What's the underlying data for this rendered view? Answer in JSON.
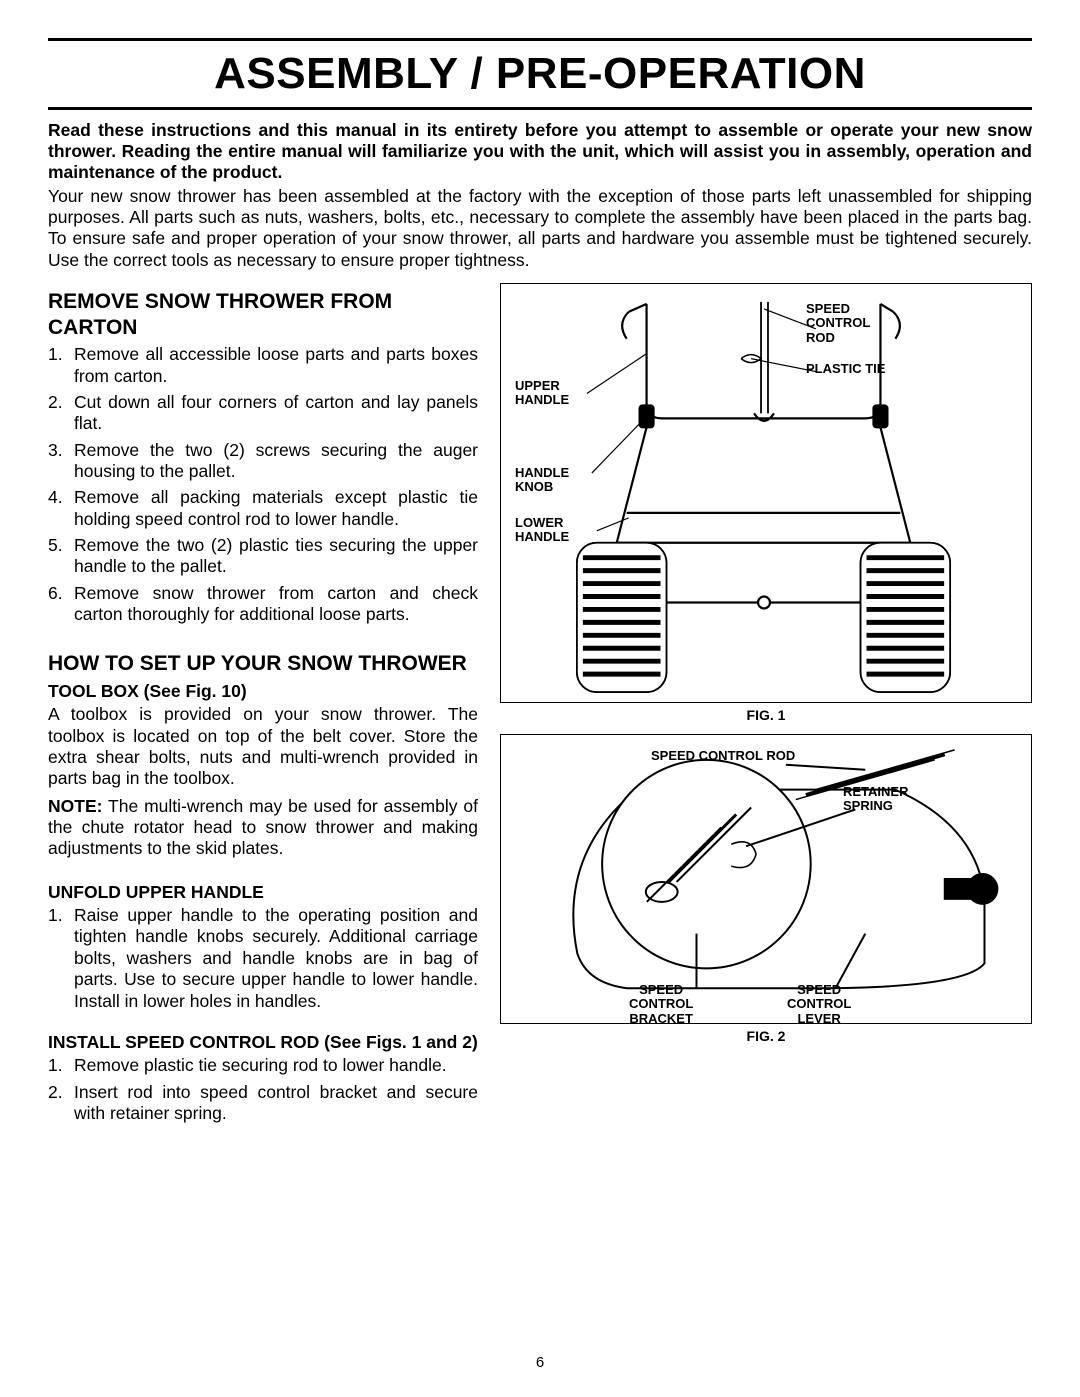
{
  "page": {
    "title": "ASSEMBLY / PRE-OPERATION",
    "intro_bold": "Read these instructions and this manual in its entirety before you attempt to assemble or operate your new snow thrower.  Reading the entire manual will familiarize you with the unit, which will assist you in assembly, operation and maintenance of the product.",
    "intro_reg": "Your new snow thrower has been assembled at the factory with the exception of those parts left unassembled for shipping purposes. All parts such as nuts, washers, bolts, etc., necessary to complete the assembly have been placed in the parts bag. To ensure safe and proper operation of your snow thrower, all parts and hardware you assemble must be tightened securely. Use the correct tools as necessary to ensure proper tightness.",
    "page_number": "6"
  },
  "sec_remove": {
    "heading": "REMOVE SNOW THROWER FROM CARTON",
    "items": [
      "Remove all accessible loose parts and parts boxes from carton.",
      "Cut down all four corners of carton and lay panels flat.",
      "Remove the two (2) screws securing the auger housing to the pallet.",
      "Remove all packing materials except plastic tie holding speed control rod to lower handle.",
      "Remove the two (2) plastic ties securing the upper handle to the pallet.",
      "Remove snow thrower from carton and check carton thoroughly for additional loose parts."
    ]
  },
  "sec_setup": {
    "heading": "HOW TO SET UP YOUR SNOW THROWER",
    "toolbox_head": "TOOL BOX (See Fig. 10)",
    "toolbox_para": "A toolbox is provided on your snow thrower. The toolbox is located on top of the belt cover.  Store the extra shear bolts, nuts and multi-wrench provided in parts bag in the toolbox.",
    "note_label": "NOTE:",
    "note_text": " The multi-wrench may be used for assembly of the chute rotator head to snow thrower and making adjustments to the skid plates.",
    "unfold_head": "UNFOLD UPPER HANDLE",
    "unfold_items": [
      "Raise upper handle to the operating position and tighten handle knobs securely.  Additional carriage bolts, washers and handle knobs are in bag of parts.  Use to secure upper handle to lower handle.  Install in lower holes in handles."
    ],
    "install_head": "INSTALL SPEED CONTROL ROD (See Figs. 1 and 2)",
    "install_items": [
      "Remove plastic tie securing rod to lower handle.",
      "Insert rod into speed control bracket and secure with retainer spring."
    ]
  },
  "fig1": {
    "caption": "FIG. 1",
    "labels": {
      "speed_control_rod": "SPEED\nCONTROL\nROD",
      "plastic_tie": "PLASTIC TIE",
      "upper_handle": "UPPER\nHANDLE",
      "handle_knob": "HANDLE\nKNOB",
      "lower_handle": "LOWER\nHANDLE"
    }
  },
  "fig2": {
    "caption": "FIG. 2",
    "labels": {
      "speed_control_rod": "SPEED CONTROL ROD",
      "retainer_spring": "RETAINER\nSPRING",
      "speed_control_bracket": "SPEED\nCONTROL\nBRACKET",
      "speed_control_lever": "SPEED\nCONTROL\nLEVER"
    }
  }
}
